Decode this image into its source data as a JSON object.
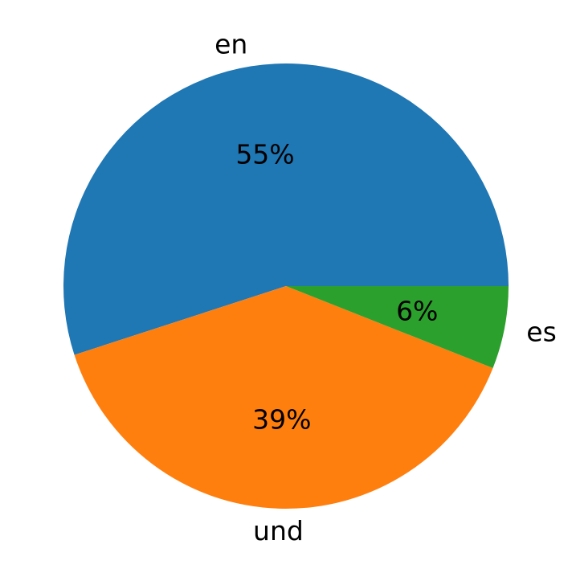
{
  "chart_data": {
    "type": "pie",
    "title": "",
    "slices": [
      {
        "label": "en",
        "value": 55,
        "pct_label": "55%",
        "color": "#1f77b4"
      },
      {
        "label": "und",
        "value": 39,
        "pct_label": "39%",
        "color": "#ff7f0e"
      },
      {
        "label": "es",
        "value": 6,
        "pct_label": "6%",
        "color": "#2ca02c"
      }
    ],
    "start_angle_deg": 0,
    "direction": "counterclockwise",
    "legend": "none"
  }
}
